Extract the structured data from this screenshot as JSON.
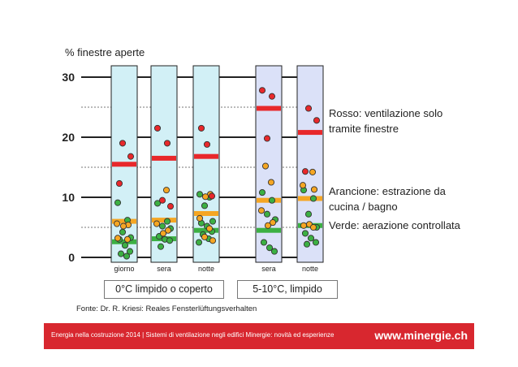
{
  "chart_data": {
    "type": "scatter",
    "ylabel": "% finestre aperte",
    "ylim": [
      0,
      30
    ],
    "yticks": [
      0,
      10,
      20,
      30
    ],
    "grid": true,
    "groups": [
      {
        "condition": "0°C limpido o coperto",
        "columns": [
          {
            "label": "giorno",
            "levels": {
              "red": 15.5,
              "orange": 6.0,
              "green": 2.6
            },
            "points": {
              "red": [
                19,
                16.8,
                12.3
              ],
              "orange": [
                5.6,
                5.4,
                5.2,
                3.2,
                3.0
              ],
              "green": [
                9.1,
                6.2,
                4.2,
                3.3,
                3.0,
                2.0,
                1.0,
                0.6,
                0.2
              ]
            }
          },
          {
            "label": "sera",
            "levels": {
              "red": 16.5,
              "orange": 6.2,
              "green": 3.1
            },
            "points": {
              "red": [
                21.5,
                19,
                9.5,
                8.5
              ],
              "orange": [
                11.2,
                5.6,
                4.5,
                4.0
              ],
              "green": [
                9.0,
                6.0,
                5.2,
                4.8,
                3.5,
                3.0,
                2.8,
                1.8
              ]
            }
          },
          {
            "label": "notte",
            "levels": {
              "red": 16.8,
              "orange": 7.3,
              "green": 4.5
            },
            "points": {
              "red": [
                21.5,
                18.8,
                10.2
              ],
              "orange": [
                10.5,
                10.1,
                6.5,
                4.8,
                3.4,
                2.8
              ],
              "green": [
                10.5,
                10.0,
                8.6,
                6.0,
                5.7,
                5.2,
                4.3,
                3.8,
                3.1,
                2.5
              ]
            }
          }
        ]
      },
      {
        "condition": "5-10°C,  limpido",
        "columns": [
          {
            "label": "sera",
            "levels": {
              "red": 24.8,
              "orange": 9.5,
              "green": 4.5
            },
            "points": {
              "red": [
                27.8,
                26.8,
                19.8
              ],
              "orange": [
                15.2,
                12.5,
                7.8,
                5.8,
                5.3
              ],
              "green": [
                10.8,
                9.5,
                7.2,
                6.3,
                2.5,
                1.6,
                1.0
              ]
            }
          },
          {
            "label": "notte",
            "levels": {
              "red": 20.8,
              "orange": 9.8,
              "green": 5.3
            },
            "points": {
              "red": [
                24.8,
                22.8,
                14.3
              ],
              "orange": [
                14.2,
                12.0,
                11.3,
                5.5,
                5.3,
                5.0
              ],
              "green": [
                11.2,
                9.8,
                7.2,
                5.0,
                4.0,
                3.2,
                2.5,
                2.2
              ]
            }
          }
        ]
      }
    ],
    "legend": {
      "red": "Rosso: ventilazione solo tramite finestre",
      "orange": "Arancione: estrazione da cucina / bagno",
      "green": "Verde: aerazione controllata"
    },
    "source": "Fonte: Dr. R. Kriesi: Reales Fensterlüftungsverhalten"
  },
  "colors": {
    "red": "#e8282b",
    "orange": "#f5a623",
    "green": "#3cb043",
    "panel_cold": "#d2f0f6",
    "panel_warm": "#dbe1f8",
    "footer": "#d8272f"
  },
  "footer": {
    "text": "Energia nella costruzione 2014 | Sistemi di ventilazione negli edifici Minergie: novità ed esperienze",
    "url": "www.minergie.ch"
  }
}
